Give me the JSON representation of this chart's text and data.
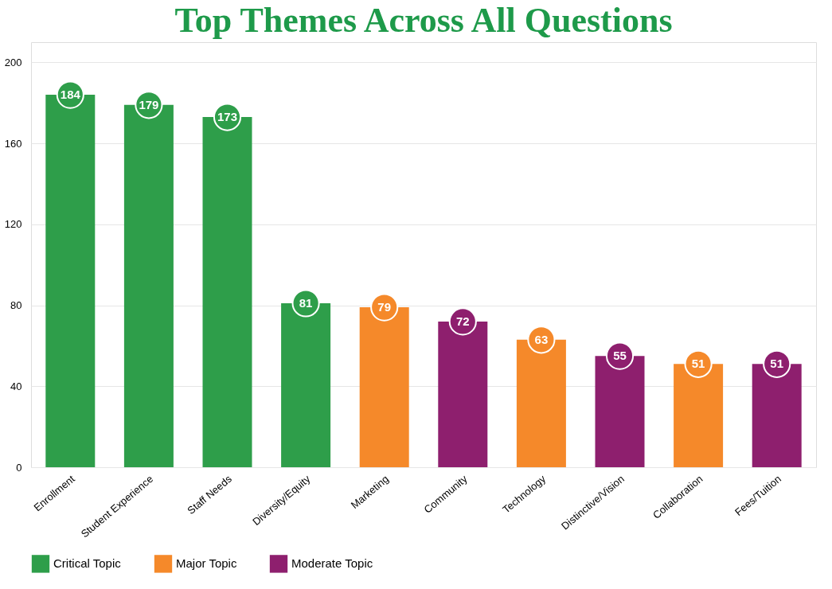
{
  "chart_data": {
    "type": "bar",
    "title": "Top Themes Across All Questions",
    "categories": [
      "Enrollment",
      "Student Experience",
      "Staff Needs",
      "Diversity/Equity",
      "Marketing",
      "Community",
      "Technology",
      "Distinctive/Vision",
      "Collaboration",
      "Fees/Tuition"
    ],
    "series": [
      {
        "name": "Critical Topic",
        "color": "#2e9e4a",
        "values": [
          184,
          179,
          173,
          81,
          null,
          null,
          null,
          null,
          null,
          null
        ]
      },
      {
        "name": "Major Topic",
        "color": "#f5892a",
        "values": [
          null,
          null,
          null,
          null,
          79,
          null,
          63,
          null,
          51,
          null
        ]
      },
      {
        "name": "Moderate Topic",
        "color": "#8e1f6e",
        "values": [
          null,
          null,
          null,
          null,
          null,
          72,
          null,
          55,
          null,
          51
        ]
      }
    ],
    "ylim": [
      0,
      210
    ],
    "yticks": [
      0,
      40,
      80,
      120,
      160,
      200
    ],
    "grid": "y",
    "legend": "bottom",
    "data_labels": true
  }
}
